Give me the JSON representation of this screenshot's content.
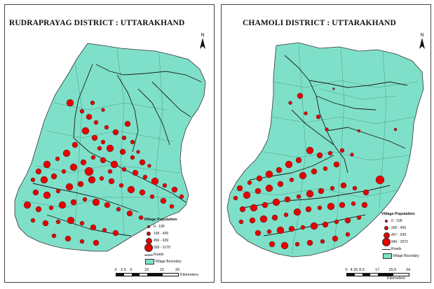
{
  "maps": [
    {
      "title": "RUDRAPRAYAG DISTRICT : UTTARAKHAND",
      "north_label": "N",
      "legend": {
        "title": "Village Population",
        "classes": [
          "0 - 199",
          "199 - 456",
          "456 - 939",
          "939 - 3170"
        ],
        "roads_label": "Roads",
        "boundary_label": "Village Boundary"
      },
      "scale": {
        "ticks": [
          "0",
          "2.5",
          "5",
          "10",
          "15",
          "20"
        ],
        "unit": "Kilometers"
      }
    },
    {
      "title": "CHAMOLI DISTRICT : UTTARAKHAND",
      "north_label": "N",
      "legend": {
        "title": "Village Population",
        "classes": [
          "0 - 199",
          "200 - 456",
          "457 - 939",
          "940 - 3072"
        ],
        "roads_label": "Roads",
        "boundary_label": "Village Boundary"
      },
      "scale": {
        "ticks": [
          "0",
          "4.25",
          "8.5",
          "17",
          "25.5",
          "34"
        ],
        "unit": "Kilometers"
      }
    }
  ],
  "colors": {
    "district_fill": "#7fe0c9",
    "village_dot": "#e60000",
    "road": "#1a1a1a",
    "boundary": "#4a9a86"
  }
}
